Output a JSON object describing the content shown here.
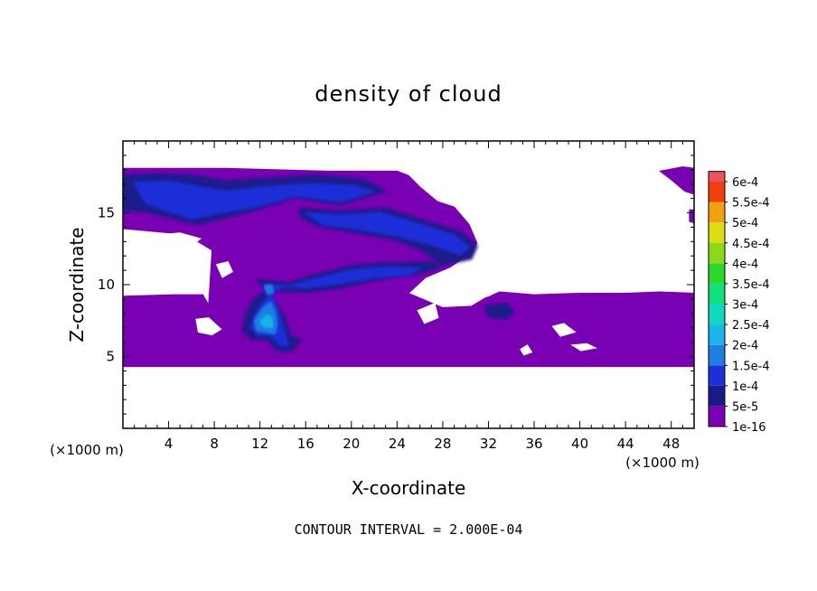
{
  "chart_data": {
    "type": "heatmap",
    "title": "density of cloud",
    "xlabel": "X-coordinate",
    "ylabel": "Z-coordinate",
    "xunit": "(×1000 m)",
    "yunit": "(×1000 m)",
    "xlim": [
      0,
      50
    ],
    "ylim": [
      0,
      20
    ],
    "xticks": [
      4,
      8,
      12,
      16,
      20,
      24,
      28,
      32,
      36,
      40,
      44,
      48
    ],
    "yticks": [
      5,
      10,
      15
    ],
    "footer": "CONTOUR INTERVAL = 2.000E-04",
    "colorbar": {
      "levels": [
        "1e-16",
        "5e-5",
        "1e-4",
        "1.5e-4",
        "2e-4",
        "2.5e-4",
        "3e-4",
        "3.5e-4",
        "4e-4",
        "4.5e-4",
        "5e-4",
        "5.5e-4",
        "6e-4"
      ],
      "colors": [
        "#7a00b4",
        "#1a1a8a",
        "#1c2fd8",
        "#1f7fe0",
        "#19b6ea",
        "#12d8c2",
        "#12e07a",
        "#2cd82c",
        "#8ed81c",
        "#dcdc10",
        "#f0a010",
        "#f04010",
        "#f05060"
      ]
    },
    "regions": [
      {
        "level": 0,
        "points": [
          [
            0,
            18.1
          ],
          [
            9,
            18.1
          ],
          [
            18,
            17.9
          ],
          [
            24,
            17.9
          ],
          [
            25,
            17.6
          ],
          [
            26,
            16.8
          ],
          [
            27.5,
            15.8
          ],
          [
            29,
            15.4
          ],
          [
            30.3,
            14.2
          ],
          [
            31,
            12.9
          ],
          [
            30.5,
            12.2
          ],
          [
            28.6,
            11.2
          ],
          [
            26.5,
            10.5
          ],
          [
            25,
            9.4
          ],
          [
            28,
            8.4
          ],
          [
            30.5,
            8.5
          ],
          [
            32,
            9.2
          ],
          [
            33,
            9.5
          ],
          [
            36,
            9.3
          ],
          [
            40,
            9.4
          ],
          [
            44,
            9.4
          ],
          [
            47,
            9.5
          ],
          [
            50,
            9.4
          ],
          [
            50,
            4.3
          ],
          [
            0,
            4.3
          ],
          [
            0,
            9.2
          ],
          [
            4.5,
            9.3
          ],
          [
            7,
            9.3
          ],
          [
            7.5,
            8.6
          ],
          [
            7.8,
            12.4
          ],
          [
            5.5,
            13.5
          ],
          [
            0,
            13.9
          ]
        ]
      },
      {
        "level": 0,
        "points": [
          [
            47,
            17.9
          ],
          [
            49,
            18.2
          ],
          [
            50,
            18.1
          ],
          [
            50,
            16.3
          ],
          [
            49.2,
            16.5
          ],
          [
            48,
            17.3
          ]
        ]
      },
      {
        "level": 0,
        "points": [
          [
            49.6,
            15.2
          ],
          [
            50,
            15.2
          ],
          [
            50,
            14.3
          ],
          [
            49.6,
            14.4
          ]
        ]
      },
      {
        "level": 1,
        "points": [
          [
            0,
            17.6
          ],
          [
            3,
            17.7
          ],
          [
            6,
            17.6
          ],
          [
            9,
            17.2
          ],
          [
            13,
            17.4
          ],
          [
            17,
            17.6
          ],
          [
            21,
            17.3
          ],
          [
            23,
            16.5
          ],
          [
            19,
            15.6
          ],
          [
            15,
            16.1
          ],
          [
            12,
            15.3
          ],
          [
            9,
            14.7
          ],
          [
            6.5,
            14.2
          ],
          [
            4,
            14.7
          ],
          [
            2,
            15.1
          ],
          [
            0,
            15.2
          ]
        ]
      },
      {
        "level": 1,
        "points": [
          [
            15.5,
            15.3
          ],
          [
            19,
            15.1
          ],
          [
            23,
            15.3
          ],
          [
            26.5,
            14.4
          ],
          [
            29.5,
            13.7
          ],
          [
            31,
            12.7
          ],
          [
            30.5,
            11.8
          ],
          [
            28,
            11.4
          ],
          [
            26,
            12.5
          ],
          [
            23.5,
            13.2
          ],
          [
            20,
            13.7
          ],
          [
            17,
            14.1
          ],
          [
            15.5,
            14.8
          ]
        ]
      },
      {
        "level": 1,
        "points": [
          [
            11.7,
            10.3
          ],
          [
            14.5,
            10.1
          ],
          [
            17,
            10.7
          ],
          [
            20,
            11.3
          ],
          [
            23,
            11.5
          ],
          [
            25.5,
            11.5
          ],
          [
            27,
            11.6
          ],
          [
            28,
            11.3
          ],
          [
            26,
            10.8
          ],
          [
            22.5,
            10.4
          ],
          [
            19,
            9.8
          ],
          [
            16,
            9.5
          ],
          [
            14,
            9.6
          ],
          [
            12.5,
            9.5
          ],
          [
            11.5,
            9.0
          ],
          [
            10.8,
            8.0
          ],
          [
            10.5,
            6.8
          ],
          [
            11.4,
            6.2
          ],
          [
            12.6,
            6.2
          ],
          [
            13.6,
            5.4
          ],
          [
            14.8,
            5.4
          ],
          [
            15.5,
            6.1
          ],
          [
            14.6,
            6.5
          ],
          [
            14.2,
            7.6
          ],
          [
            13.3,
            8.7
          ],
          [
            12.8,
            9.6
          ]
        ]
      },
      {
        "level": 1,
        "points": [
          [
            31.7,
            8.5
          ],
          [
            33.5,
            8.7
          ],
          [
            34.2,
            8.1
          ],
          [
            33.5,
            7.6
          ],
          [
            32,
            7.8
          ]
        ]
      },
      {
        "level": 2,
        "points": [
          [
            1,
            17.1
          ],
          [
            4,
            17.2
          ],
          [
            6.5,
            16.8
          ],
          [
            9,
            16.5
          ],
          [
            12.5,
            16.8
          ],
          [
            16,
            17.0
          ],
          [
            20,
            16.9
          ],
          [
            22,
            16.5
          ],
          [
            19,
            15.8
          ],
          [
            15,
            16.2
          ],
          [
            12,
            15.5
          ],
          [
            8.5,
            15.0
          ],
          [
            6,
            14.6
          ],
          [
            4,
            15.1
          ],
          [
            2,
            15.7
          ]
        ]
      },
      {
        "level": 2,
        "points": [
          [
            16,
            15.0
          ],
          [
            19,
            14.8
          ],
          [
            22.5,
            15.0
          ],
          [
            26,
            14.2
          ],
          [
            29,
            13.4
          ],
          [
            30.3,
            12.6
          ],
          [
            29.5,
            12.1
          ],
          [
            27,
            12.8
          ],
          [
            24,
            13.4
          ],
          [
            20.5,
            13.9
          ],
          [
            17.5,
            14.2
          ]
        ]
      },
      {
        "level": 2,
        "points": [
          [
            12.3,
            10.0
          ],
          [
            14.5,
            9.9
          ],
          [
            17,
            10.4
          ],
          [
            20,
            11.0
          ],
          [
            23,
            11.2
          ],
          [
            26,
            11.1
          ],
          [
            25,
            10.7
          ],
          [
            22,
            10.5
          ],
          [
            19,
            10.1
          ],
          [
            16,
            9.8
          ],
          [
            14,
            9.9
          ],
          [
            12.8,
            9.3
          ],
          [
            11.8,
            8.2
          ],
          [
            11.2,
            7.1
          ],
          [
            11.8,
            6.5
          ],
          [
            12.8,
            6.5
          ],
          [
            13.8,
            5.8
          ],
          [
            14.5,
            5.8
          ],
          [
            14.1,
            6.7
          ],
          [
            13.7,
            7.9
          ],
          [
            13.2,
            9.0
          ]
        ]
      },
      {
        "level": 3,
        "points": [
          [
            11.5,
            7.5
          ],
          [
            12.2,
            8.3
          ],
          [
            12.9,
            8.8
          ],
          [
            13.3,
            8.1
          ],
          [
            13.5,
            7.3
          ],
          [
            13.3,
            6.6
          ],
          [
            12.6,
            6.7
          ],
          [
            11.7,
            6.8
          ]
        ]
      },
      {
        "level": 4,
        "points": [
          [
            12,
            7.4
          ],
          [
            12.7,
            7.9
          ],
          [
            13.1,
            7.5
          ],
          [
            13.1,
            7.0
          ],
          [
            12.4,
            7.1
          ]
        ]
      },
      {
        "level": 3,
        "points": [
          [
            12.4,
            9.9
          ],
          [
            13.0,
            10.0
          ],
          [
            13.2,
            9.5
          ],
          [
            12.7,
            9.3
          ]
        ]
      }
    ],
    "holes": [
      {
        "points": [
          [
            0,
            13.2
          ],
          [
            2,
            12.8
          ],
          [
            4,
            12.6
          ],
          [
            5.8,
            12.6
          ],
          [
            6.8,
            13.2
          ],
          [
            5,
            13.6
          ],
          [
            2,
            13.4
          ]
        ]
      },
      {
        "points": [
          [
            0.5,
            12.2
          ],
          [
            3,
            11.9
          ],
          [
            5.5,
            12.0
          ],
          [
            7,
            11.2
          ],
          [
            7.3,
            10.0
          ],
          [
            6.5,
            9.5
          ],
          [
            4,
            9.7
          ],
          [
            2,
            9.9
          ],
          [
            0.6,
            11.0
          ]
        ]
      },
      {
        "points": [
          [
            28.3,
            10.2
          ],
          [
            30.5,
            10.4
          ],
          [
            32,
            10.1
          ],
          [
            33,
            9.6
          ],
          [
            32,
            9.2
          ],
          [
            30.3,
            8.9
          ],
          [
            28.3,
            9.5
          ]
        ]
      },
      {
        "points": [
          [
            6.4,
            7.6
          ],
          [
            7.5,
            7.7
          ],
          [
            8.6,
            6.9
          ],
          [
            7.8,
            6.5
          ],
          [
            6.6,
            6.7
          ]
        ]
      },
      {
        "points": [
          [
            25.8,
            8.2
          ],
          [
            27.3,
            8.7
          ],
          [
            27.6,
            7.7
          ],
          [
            26.4,
            7.3
          ]
        ]
      },
      {
        "points": [
          [
            37.6,
            7.1
          ],
          [
            38.6,
            7.3
          ],
          [
            39.6,
            6.7
          ],
          [
            38.3,
            6.4
          ]
        ]
      },
      {
        "points": [
          [
            34.8,
            5.5
          ],
          [
            35.4,
            5.8
          ],
          [
            35.8,
            5.3
          ],
          [
            35.1,
            5.1
          ]
        ]
      },
      {
        "points": [
          [
            39.3,
            5.8
          ],
          [
            40.6,
            5.9
          ],
          [
            41.4,
            5.6
          ],
          [
            40.1,
            5.4
          ]
        ]
      },
      {
        "points": [
          [
            8.2,
            11.4
          ],
          [
            9.2,
            11.6
          ],
          [
            9.6,
            10.9
          ],
          [
            8.7,
            10.5
          ]
        ]
      }
    ]
  }
}
